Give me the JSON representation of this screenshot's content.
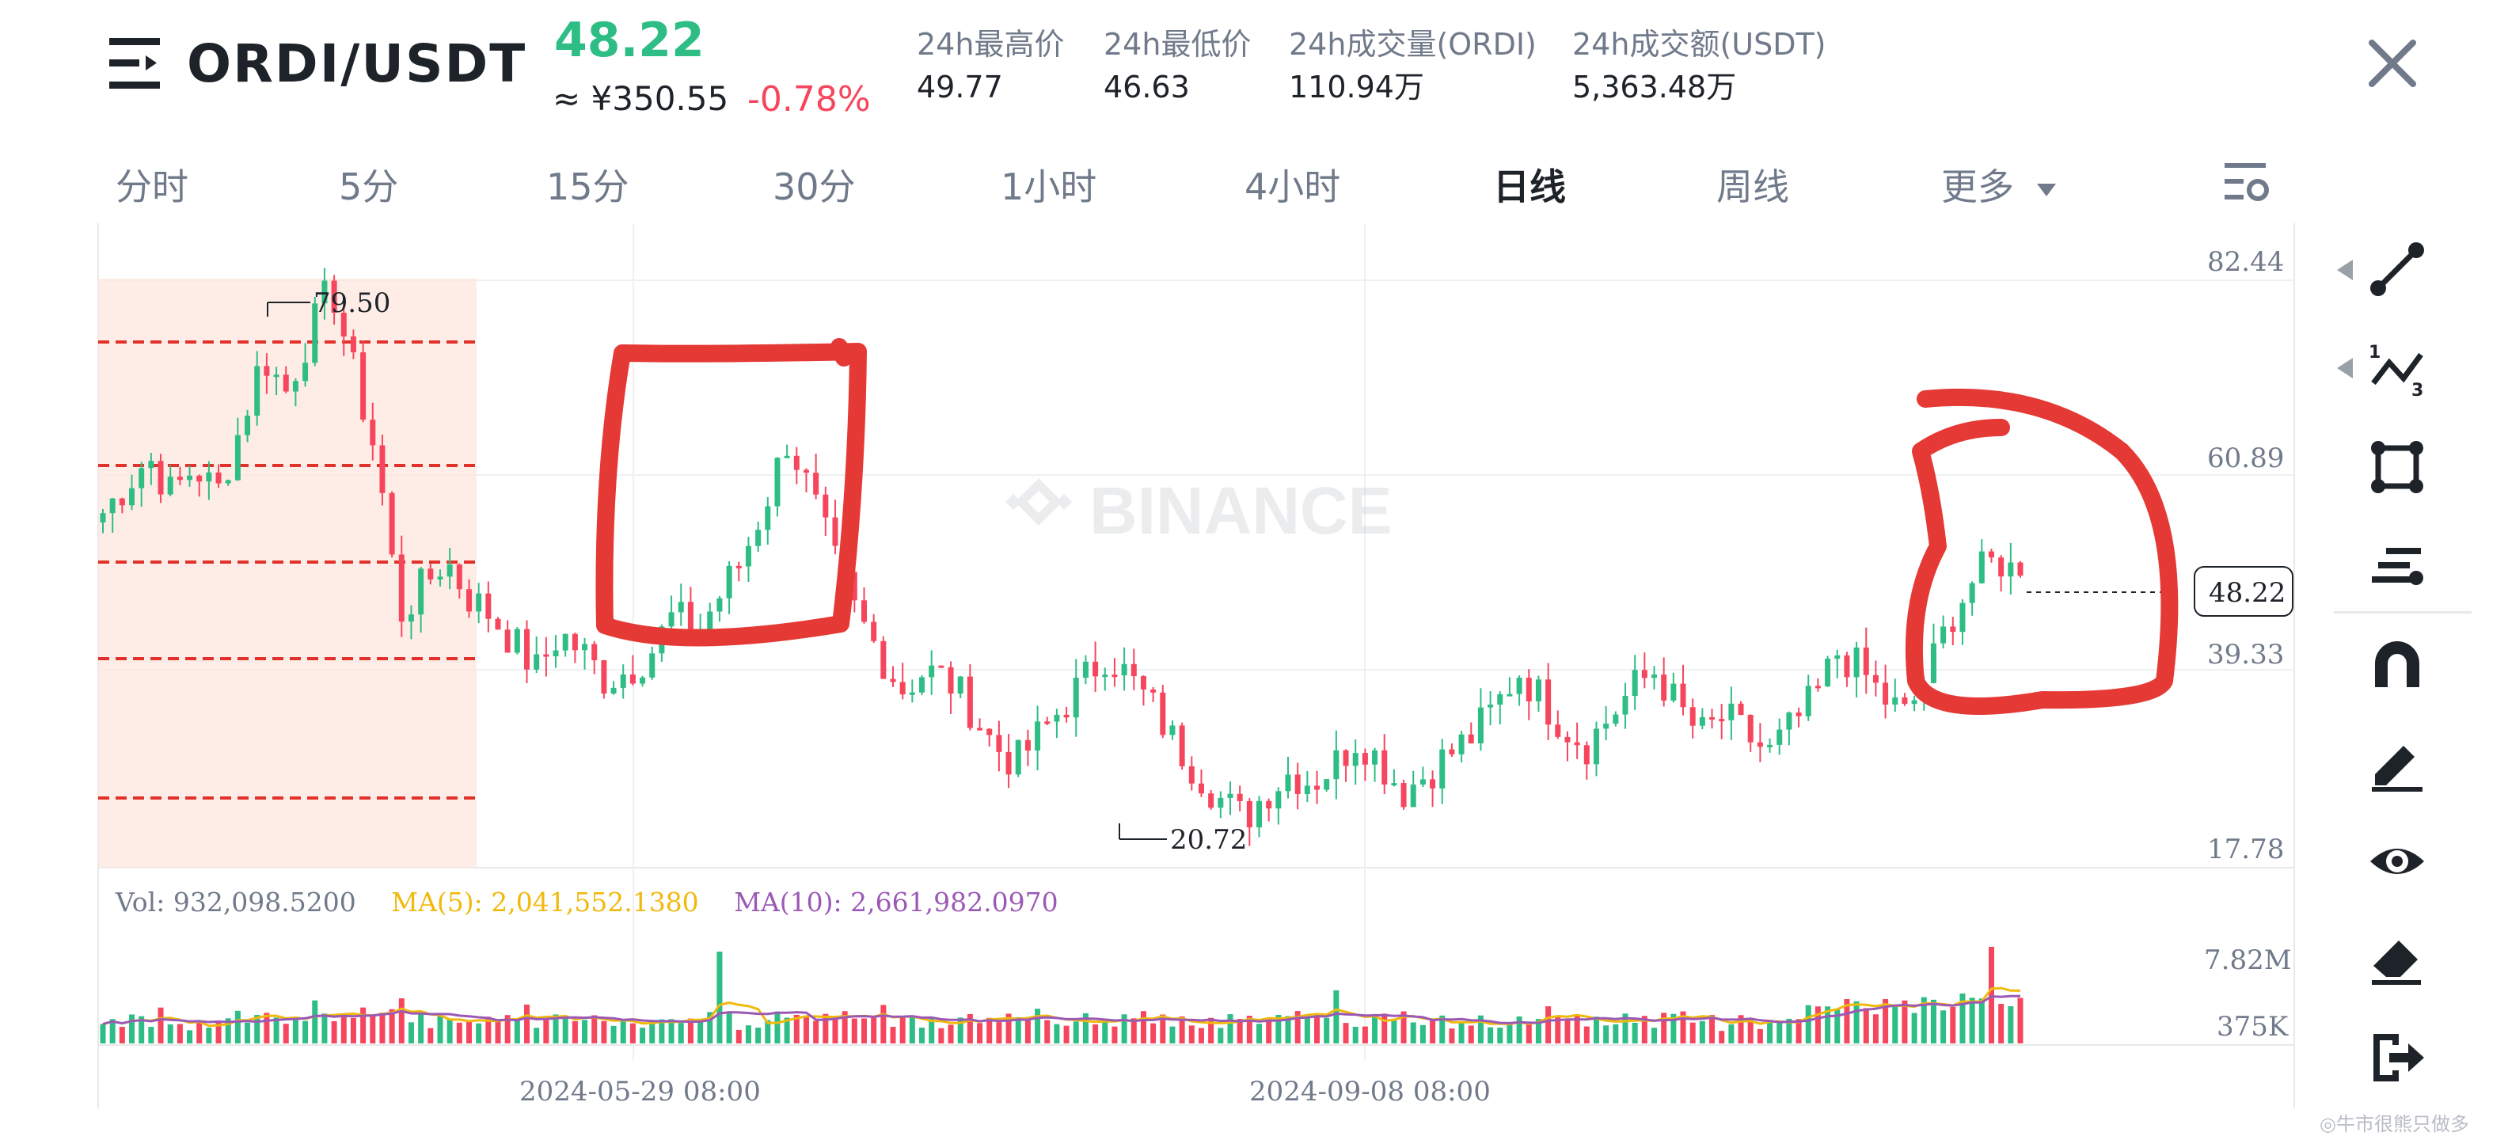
{
  "header": {
    "pair": "ORDI/USDT",
    "last_price": "48.22",
    "cny_price": "≈ ¥350.55",
    "change_pct": "-0.78%",
    "stats": [
      {
        "label": "24h最高价",
        "value": "49.77"
      },
      {
        "label": "24h最低价",
        "value": "46.63"
      },
      {
        "label": "24h成交量(ORDI)",
        "value": "110.94万"
      },
      {
        "label": "24h成交额(USDT)",
        "value": "5,363.48万"
      }
    ]
  },
  "tabs": [
    "分时",
    "5分",
    "15分",
    "30分",
    "1小时",
    "4小时",
    "日线",
    "周线",
    "更多"
  ],
  "active_tab": "日线",
  "chart": {
    "watermark": "BINANCE",
    "price_axis": [
      "82.44",
      "60.89",
      "39.33",
      "17.78"
    ],
    "current_price_label": "48.22",
    "high_marker": "79.50",
    "low_marker": "20.72",
    "date_labels": [
      "2024-05-29 08:00",
      "2024-09-08 08:00"
    ],
    "volume_axis": [
      "7.82M",
      "375K"
    ]
  },
  "volume_legend": {
    "vol": "Vol: 932,098.5200",
    "ma5": "MA(5): 2,041,552.1380",
    "ma10": "MA(10): 2,661,982.0970"
  },
  "tools": [
    "trend-line-icon",
    "polyline-icon",
    "rectangle-icon",
    "fib-levels-icon",
    "magnet-icon",
    "pencil-icon",
    "eye-icon",
    "eraser-icon",
    "exit-icon"
  ],
  "colors": {
    "up": "#2ebd85",
    "down": "#f6465d",
    "ma5": "#f0b90b",
    "ma10": "#9b59b6",
    "annotation": "#e53935",
    "zone": "#fde7dd"
  },
  "footer_watermark": "◎牛市很熊只做多",
  "chart_data": {
    "type": "candlestick",
    "y_range": [
      17.78,
      82.44
    ],
    "x_ticks": [
      "2024-05-29 08:00",
      "2024-09-08 08:00"
    ],
    "marked_high": 79.5,
    "marked_low": 20.72,
    "last": 48.22,
    "close_path": [
      55,
      58,
      61,
      57,
      60,
      57,
      64,
      72,
      68,
      74,
      79.5,
      70,
      61,
      44,
      47,
      50,
      46,
      44,
      41,
      38,
      42,
      40,
      37,
      38,
      40,
      44,
      42,
      46,
      50,
      56,
      63,
      57,
      50,
      44,
      40,
      36,
      38,
      37,
      34,
      30,
      28,
      31,
      34,
      37,
      40,
      37,
      34,
      30,
      27,
      24,
      22,
      25,
      27,
      26,
      28,
      31,
      28,
      25,
      27,
      29,
      31,
      34,
      38,
      35,
      32,
      30,
      33,
      36,
      38,
      34,
      31,
      33,
      31,
      29,
      32,
      35,
      40,
      38,
      35,
      33,
      38,
      44,
      48,
      50,
      48
    ],
    "volume_axis": [
      "7.82M",
      "375K"
    ]
  }
}
